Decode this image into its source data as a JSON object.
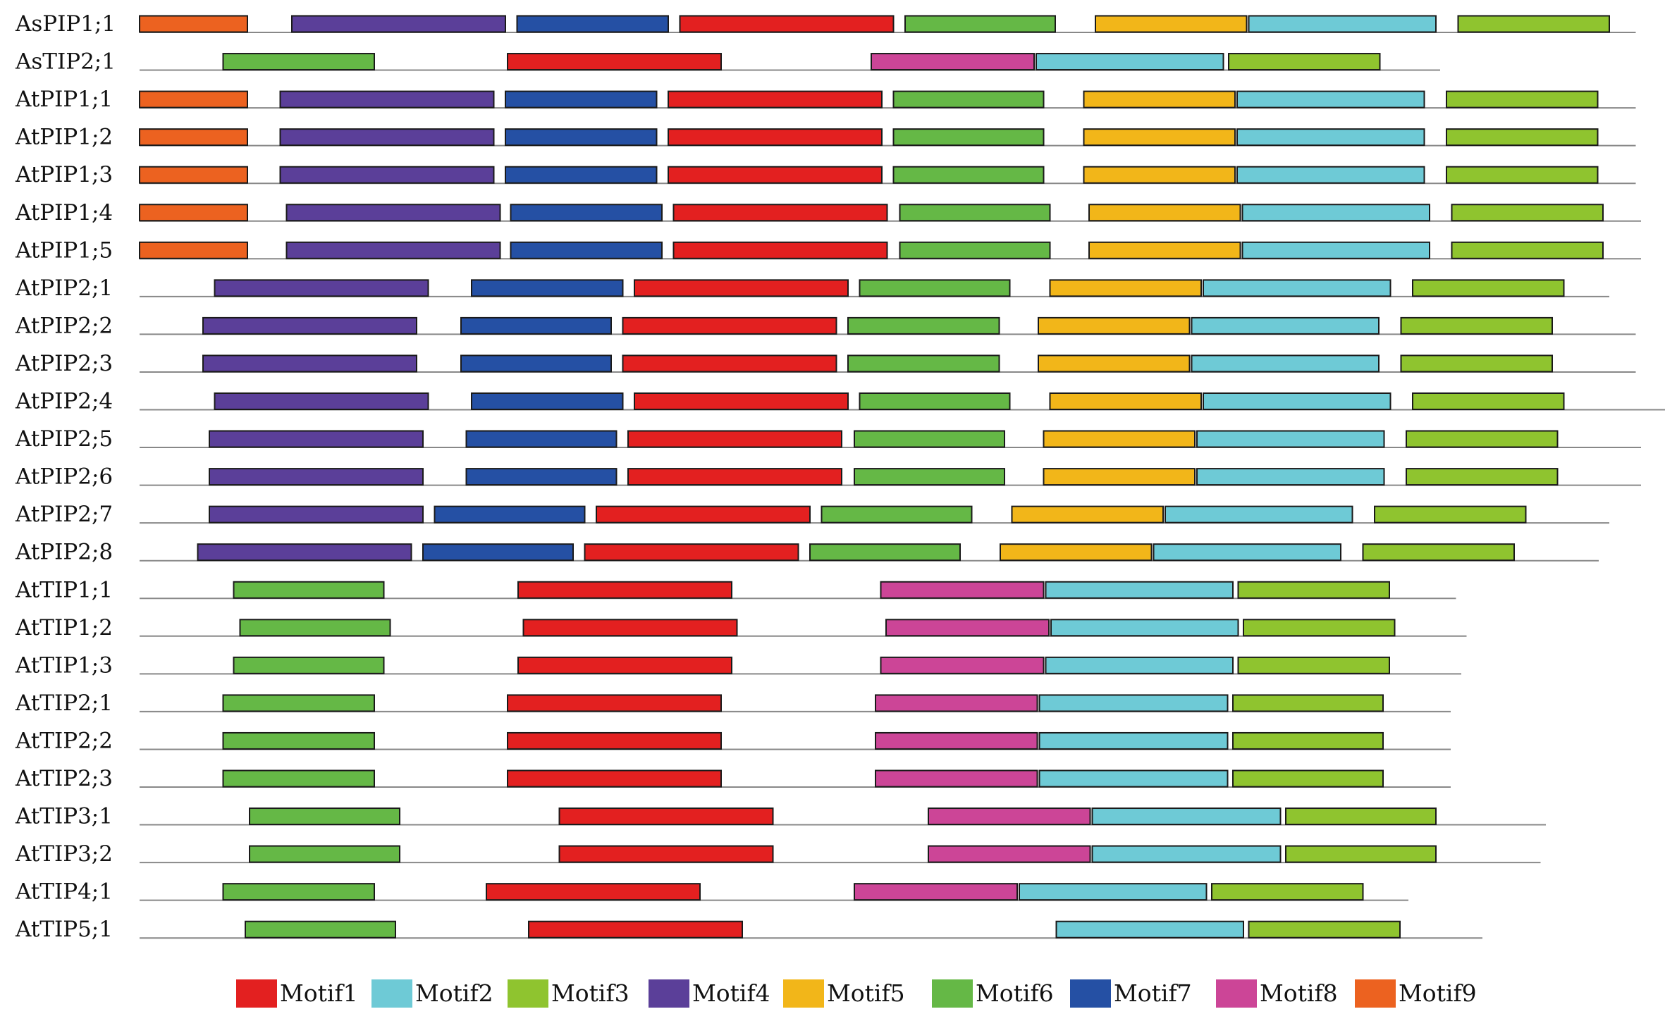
{
  "motifs": [
    {
      "id": 1,
      "label": "Motif1",
      "color": "#e32020"
    },
    {
      "id": 2,
      "label": "Motif2",
      "color": "#6ecad6"
    },
    {
      "id": 3,
      "label": "Motif3",
      "color": "#8fc42f"
    },
    {
      "id": 4,
      "label": "Motif4",
      "color": "#5b3f99"
    },
    {
      "id": 5,
      "label": "Motif5",
      "color": "#f2b619"
    },
    {
      "id": 6,
      "label": "Motif6",
      "color": "#65b846"
    },
    {
      "id": 7,
      "label": "Motif7",
      "color": "#2550a4"
    },
    {
      "id": 8,
      "label": "Motif8",
      "color": "#cc4597"
    },
    {
      "id": 9,
      "label": "Motif9",
      "color": "#ec6220"
    }
  ],
  "genes": [
    {
      "name": "AsPIP1;1",
      "length": 1415,
      "motifs": [
        [
          9,
          0,
          102
        ],
        [
          4,
          144,
          346
        ],
        [
          7,
          357,
          500
        ],
        [
          1,
          511,
          713
        ],
        [
          6,
          724,
          866
        ],
        [
          5,
          904,
          1047
        ],
        [
          2,
          1049,
          1226
        ],
        [
          3,
          1247,
          1390
        ]
      ]
    },
    {
      "name": "AsTIP2;1",
      "length": 1230,
      "motifs": [
        [
          6,
          79,
          222
        ],
        [
          1,
          348,
          550
        ],
        [
          8,
          692,
          846
        ],
        [
          2,
          848,
          1025
        ],
        [
          3,
          1030,
          1173
        ]
      ]
    },
    {
      "name": "AtPIP1;1",
      "length": 1415,
      "motifs": [
        [
          9,
          0,
          102
        ],
        [
          4,
          133,
          335
        ],
        [
          7,
          346,
          489
        ],
        [
          1,
          500,
          702
        ],
        [
          6,
          713,
          855
        ],
        [
          5,
          893,
          1036
        ],
        [
          2,
          1038,
          1215
        ],
        [
          3,
          1236,
          1379
        ]
      ]
    },
    {
      "name": "AtPIP1;2",
      "length": 1415,
      "motifs": [
        [
          9,
          0,
          102
        ],
        [
          4,
          133,
          335
        ],
        [
          7,
          346,
          489
        ],
        [
          1,
          500,
          702
        ],
        [
          6,
          713,
          855
        ],
        [
          5,
          893,
          1036
        ],
        [
          2,
          1038,
          1215
        ],
        [
          3,
          1236,
          1379
        ]
      ]
    },
    {
      "name": "AtPIP1;3",
      "length": 1415,
      "motifs": [
        [
          9,
          0,
          102
        ],
        [
          4,
          133,
          335
        ],
        [
          7,
          346,
          489
        ],
        [
          1,
          500,
          702
        ],
        [
          6,
          713,
          855
        ],
        [
          5,
          893,
          1036
        ],
        [
          2,
          1038,
          1215
        ],
        [
          3,
          1236,
          1379
        ]
      ]
    },
    {
      "name": "AtPIP1;4",
      "length": 1420,
      "motifs": [
        [
          9,
          0,
          102
        ],
        [
          4,
          139,
          341
        ],
        [
          7,
          351,
          494
        ],
        [
          1,
          505,
          707
        ],
        [
          6,
          719,
          861
        ],
        [
          5,
          898,
          1041
        ],
        [
          2,
          1043,
          1220
        ],
        [
          3,
          1241,
          1384
        ]
      ]
    },
    {
      "name": "AtPIP1;5",
      "length": 1420,
      "motifs": [
        [
          9,
          0,
          102
        ],
        [
          4,
          139,
          341
        ],
        [
          7,
          351,
          494
        ],
        [
          1,
          505,
          707
        ],
        [
          6,
          719,
          861
        ],
        [
          5,
          898,
          1041
        ],
        [
          2,
          1043,
          1220
        ],
        [
          3,
          1241,
          1384
        ]
      ]
    },
    {
      "name": "AtPIP2;1",
      "length": 1390,
      "motifs": [
        [
          4,
          71,
          273
        ],
        [
          7,
          314,
          457
        ],
        [
          1,
          468,
          670
        ],
        [
          6,
          681,
          823
        ],
        [
          5,
          861,
          1004
        ],
        [
          2,
          1006,
          1183
        ],
        [
          3,
          1204,
          1347
        ]
      ]
    },
    {
      "name": "AtPIP2;2",
      "length": 1415,
      "motifs": [
        [
          4,
          60,
          262
        ],
        [
          7,
          304,
          446
        ],
        [
          1,
          457,
          659
        ],
        [
          6,
          670,
          813
        ],
        [
          5,
          850,
          993
        ],
        [
          2,
          995,
          1172
        ],
        [
          3,
          1193,
          1336
        ]
      ]
    },
    {
      "name": "AtPIP2;3",
      "length": 1415,
      "motifs": [
        [
          4,
          60,
          262
        ],
        [
          7,
          304,
          446
        ],
        [
          1,
          457,
          659
        ],
        [
          6,
          670,
          813
        ],
        [
          5,
          850,
          993
        ],
        [
          2,
          995,
          1172
        ],
        [
          3,
          1193,
          1336
        ]
      ]
    },
    {
      "name": "AtPIP2;4",
      "length": 1445,
      "motifs": [
        [
          4,
          71,
          273
        ],
        [
          7,
          314,
          457
        ],
        [
          1,
          468,
          670
        ],
        [
          6,
          681,
          823
        ],
        [
          5,
          861,
          1004
        ],
        [
          2,
          1006,
          1183
        ],
        [
          3,
          1204,
          1347
        ]
      ]
    },
    {
      "name": "AtPIP2;5",
      "length": 1420,
      "motifs": [
        [
          4,
          66,
          268
        ],
        [
          7,
          309,
          451
        ],
        [
          1,
          462,
          664
        ],
        [
          6,
          676,
          818
        ],
        [
          5,
          855,
          998
        ],
        [
          2,
          1000,
          1177
        ],
        [
          3,
          1198,
          1341
        ]
      ]
    },
    {
      "name": "AtPIP2;6",
      "length": 1420,
      "motifs": [
        [
          4,
          66,
          268
        ],
        [
          7,
          309,
          451
        ],
        [
          1,
          462,
          664
        ],
        [
          6,
          676,
          818
        ],
        [
          5,
          855,
          998
        ],
        [
          2,
          1000,
          1177
        ],
        [
          3,
          1198,
          1341
        ]
      ]
    },
    {
      "name": "AtPIP2;7",
      "length": 1390,
      "motifs": [
        [
          4,
          66,
          268
        ],
        [
          7,
          279,
          421
        ],
        [
          1,
          432,
          634
        ],
        [
          6,
          645,
          787
        ],
        [
          5,
          825,
          968
        ],
        [
          2,
          970,
          1147
        ],
        [
          3,
          1168,
          1311
        ]
      ]
    },
    {
      "name": "AtPIP2;8",
      "length": 1380,
      "motifs": [
        [
          4,
          55,
          257
        ],
        [
          7,
          268,
          410
        ],
        [
          1,
          421,
          623
        ],
        [
          6,
          634,
          776
        ],
        [
          5,
          814,
          957
        ],
        [
          2,
          959,
          1136
        ],
        [
          3,
          1157,
          1300
        ]
      ]
    },
    {
      "name": "AtTIP1;1",
      "length": 1245,
      "motifs": [
        [
          6,
          89,
          231
        ],
        [
          1,
          358,
          560
        ],
        [
          8,
          701,
          855
        ],
        [
          2,
          857,
          1034
        ],
        [
          3,
          1039,
          1182
        ]
      ]
    },
    {
      "name": "AtTIP1;2",
      "length": 1255,
      "motifs": [
        [
          6,
          95,
          237
        ],
        [
          1,
          363,
          565
        ],
        [
          8,
          706,
          860
        ],
        [
          2,
          862,
          1039
        ],
        [
          3,
          1044,
          1187
        ]
      ]
    },
    {
      "name": "AtTIP1;3",
      "length": 1250,
      "motifs": [
        [
          6,
          89,
          231
        ],
        [
          1,
          358,
          560
        ],
        [
          8,
          701,
          855
        ],
        [
          2,
          857,
          1034
        ],
        [
          3,
          1039,
          1182
        ]
      ]
    },
    {
      "name": "AtTIP2;1",
      "length": 1240,
      "motifs": [
        [
          6,
          79,
          222
        ],
        [
          1,
          348,
          550
        ],
        [
          8,
          696,
          849
        ],
        [
          2,
          851,
          1029
        ],
        [
          3,
          1034,
          1176
        ]
      ]
    },
    {
      "name": "AtTIP2;2",
      "length": 1240,
      "motifs": [
        [
          6,
          79,
          222
        ],
        [
          1,
          348,
          550
        ],
        [
          8,
          696,
          849
        ],
        [
          2,
          851,
          1029
        ],
        [
          3,
          1034,
          1176
        ]
      ]
    },
    {
      "name": "AtTIP2;3",
      "length": 1240,
      "motifs": [
        [
          6,
          79,
          222
        ],
        [
          1,
          348,
          550
        ],
        [
          8,
          696,
          849
        ],
        [
          2,
          851,
          1029
        ],
        [
          3,
          1034,
          1176
        ]
      ]
    },
    {
      "name": "AtTIP3;1",
      "length": 1330,
      "motifs": [
        [
          6,
          104,
          246
        ],
        [
          1,
          397,
          599
        ],
        [
          8,
          746,
          899
        ],
        [
          2,
          901,
          1079
        ],
        [
          3,
          1084,
          1226
        ]
      ]
    },
    {
      "name": "AtTIP3;2",
      "length": 1325,
      "motifs": [
        [
          6,
          104,
          246
        ],
        [
          1,
          397,
          599
        ],
        [
          8,
          746,
          899
        ],
        [
          2,
          901,
          1079
        ],
        [
          3,
          1084,
          1226
        ]
      ]
    },
    {
      "name": "AtTIP4;1",
      "length": 1200,
      "motifs": [
        [
          6,
          79,
          222
        ],
        [
          1,
          328,
          530
        ],
        [
          8,
          676,
          830
        ],
        [
          2,
          832,
          1009
        ],
        [
          3,
          1014,
          1157
        ]
      ]
    },
    {
      "name": "AtTIP5;1",
      "length": 1270,
      "motifs": [
        [
          6,
          100,
          242
        ],
        [
          1,
          368,
          570
        ],
        [
          2,
          867,
          1044
        ],
        [
          3,
          1049,
          1192
        ]
      ]
    }
  ]
}
